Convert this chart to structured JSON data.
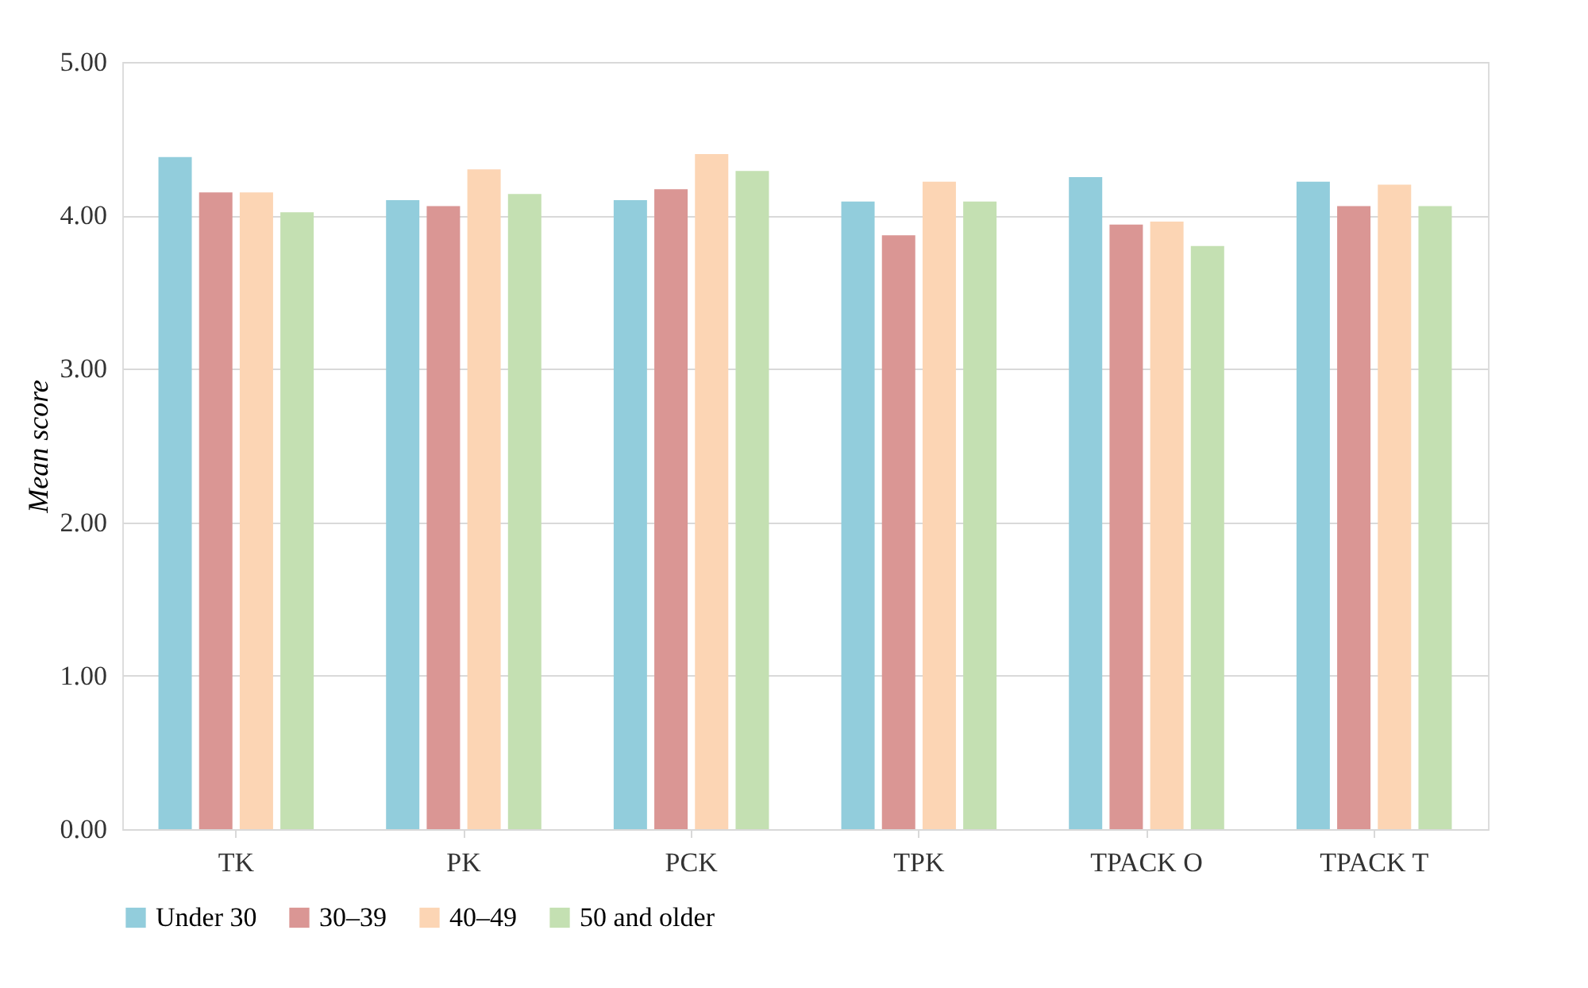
{
  "chart_data": {
    "type": "bar",
    "ylabel": "Mean score",
    "categories": [
      "TK",
      "PK",
      "PCK",
      "TPK",
      "TPACK O",
      "TPACK T"
    ],
    "series": [
      {
        "name": "Under 30",
        "color": "#92cddc",
        "values": [
          4.38,
          4.1,
          4.1,
          4.09,
          4.25,
          4.22
        ]
      },
      {
        "name": "30–39",
        "color": "#da9694",
        "values": [
          4.15,
          4.06,
          4.17,
          3.87,
          3.94,
          4.06
        ]
      },
      {
        "name": "40–49",
        "color": "#fcd5b4",
        "values": [
          4.15,
          4.3,
          4.4,
          4.22,
          3.96,
          4.2
        ]
      },
      {
        "name": "50 and older",
        "color": "#c4e0b2",
        "values": [
          4.02,
          4.14,
          4.29,
          4.09,
          3.8,
          4.06
        ]
      }
    ],
    "ylim": [
      0,
      5
    ],
    "yticks": [
      {
        "value": 0,
        "label": "0.00"
      },
      {
        "value": 1,
        "label": "1.00"
      },
      {
        "value": 2,
        "label": "2.00"
      },
      {
        "value": 3,
        "label": "3.00"
      },
      {
        "value": 4,
        "label": "4.00"
      },
      {
        "value": 5,
        "label": "5.00"
      }
    ],
    "grid": "y",
    "legend": "bottom"
  }
}
